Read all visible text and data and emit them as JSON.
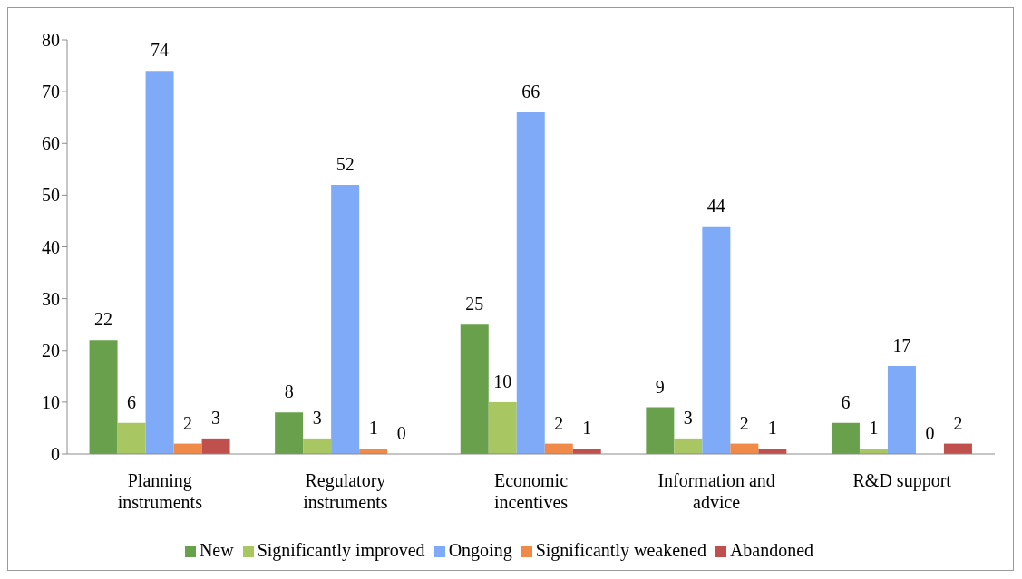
{
  "chart_data": {
    "type": "bar",
    "categories": [
      "Planning instruments",
      "Regulatory instruments",
      "Economic incentives",
      "Information and advice",
      "R&D support"
    ],
    "series": [
      {
        "name": "New",
        "color": "#68a04b",
        "values": [
          22,
          8,
          25,
          9,
          6
        ]
      },
      {
        "name": "Significantly improved",
        "color": "#a8c662",
        "values": [
          6,
          3,
          10,
          3,
          1
        ]
      },
      {
        "name": "Ongoing",
        "color": "#7eaaf8",
        "values": [
          74,
          52,
          66,
          44,
          17
        ]
      },
      {
        "name": "Significantly weakened",
        "color": "#ef8a48",
        "values": [
          2,
          1,
          2,
          2,
          0
        ]
      },
      {
        "name": "Abandoned",
        "color": "#c0504d",
        "values": [
          3,
          0,
          1,
          1,
          2
        ]
      }
    ],
    "ylim": [
      0,
      80
    ],
    "yticks": [
      0,
      10,
      20,
      30,
      40,
      50,
      60,
      70,
      80
    ],
    "grid": false,
    "legend": "bottom",
    "data_labels": true
  }
}
